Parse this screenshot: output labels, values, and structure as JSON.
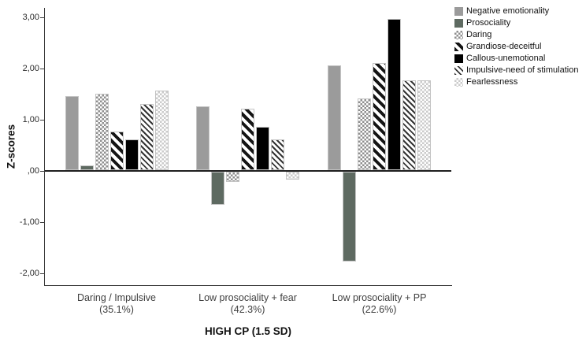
{
  "chart_data": {
    "type": "bar",
    "title": "",
    "xlabel": "HIGH CP (1.5 SD)",
    "ylabel": "Z-scores",
    "ylim": [
      -2.25,
      3.15
    ],
    "grid": false,
    "legend_position": "top-right",
    "decimal_separator": "comma",
    "y_ticks": [
      {
        "label": "3,00",
        "value": 3
      },
      {
        "label": "2,00",
        "value": 2
      },
      {
        "label": "1,00",
        "value": 1
      },
      {
        "label": ",00",
        "value": 0
      },
      {
        "label": "-1,00",
        "value": -1
      },
      {
        "label": "-2,00",
        "value": -2
      }
    ],
    "categories": [
      "Daring / Impulsive",
      "Low prosociality + fear",
      "Low prosociality + PP"
    ],
    "category_sublabels": [
      "(35.1%)",
      "(42.3%)",
      "(22.6%)"
    ],
    "series": [
      {
        "name": "Negative emotionality",
        "pattern": "solid-gray",
        "color": "#9b9b9b",
        "values": [
          1.45,
          1.25,
          2.05
        ]
      },
      {
        "name": "Prosociality",
        "pattern": "solid-darkgray",
        "color": "#5e6a61",
        "values": [
          0.1,
          -0.65,
          -1.75
        ]
      },
      {
        "name": "Daring",
        "pattern": "checker-gray",
        "color": "#8f8f8f",
        "values": [
          1.5,
          -0.2,
          1.4
        ]
      },
      {
        "name": "Grandiose-deceitful",
        "pattern": "diagonal-wide",
        "color": "#141414",
        "values": [
          0.75,
          1.2,
          2.1
        ]
      },
      {
        "name": "Callous-unemotional",
        "pattern": "solid-black",
        "color": "#000000",
        "values": [
          0.6,
          0.85,
          2.95
        ]
      },
      {
        "name": "Impulsive-need of stimulation",
        "pattern": "diagonal-thin",
        "color": "#343434",
        "values": [
          1.3,
          0.6,
          1.75
        ]
      },
      {
        "name": "Fearlessness",
        "pattern": "checker-light",
        "color": "#cbcbcb",
        "values": [
          1.55,
          -0.15,
          1.75
        ]
      }
    ]
  }
}
